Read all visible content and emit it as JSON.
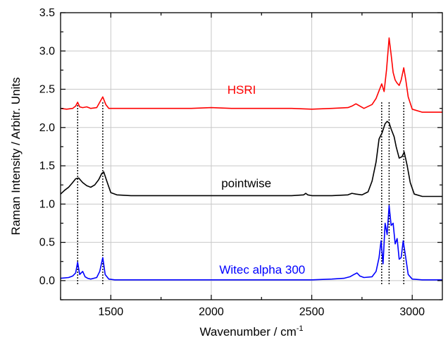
{
  "chart_data": {
    "type": "line",
    "title": "",
    "xlabel": "Wavenumber / cm",
    "xlabel_superscript": "-1",
    "ylabel": "Raman Intensity / Arbitr. Units",
    "xlim": [
      1250,
      3150
    ],
    "ylim": [
      -0.25,
      3.5
    ],
    "x_ticks": [
      1500,
      2000,
      2500,
      3000
    ],
    "x_tick_labels": [
      "1500",
      "2000",
      "2500",
      "3000"
    ],
    "y_ticks": [
      0.0,
      0.5,
      1.0,
      1.5,
      2.0,
      2.5,
      3.0,
      3.5
    ],
    "y_tick_labels": [
      "0.0",
      "0.5",
      "1.0",
      "1.5",
      "2.0",
      "2.5",
      "3.0",
      "3.5"
    ],
    "grid": true,
    "reference_lines_x": [
      1335,
      1460,
      2848,
      2885,
      2958
    ],
    "series": [
      {
        "name": "HSRI",
        "color": "#ff0000",
        "baseline": 2.25,
        "x": [
          1250,
          1280,
          1310,
          1325,
          1335,
          1345,
          1360,
          1380,
          1400,
          1430,
          1445,
          1460,
          1475,
          1490,
          1520,
          1600,
          1700,
          1800,
          1900,
          2000,
          2100,
          2200,
          2300,
          2400,
          2500,
          2600,
          2680,
          2700,
          2720,
          2740,
          2760,
          2800,
          2820,
          2835,
          2848,
          2860,
          2872,
          2885,
          2895,
          2905,
          2915,
          2925,
          2935,
          2945,
          2958,
          2968,
          2980,
          3000,
          3050,
          3100,
          3150
        ],
        "y": [
          2.25,
          2.24,
          2.25,
          2.28,
          2.33,
          2.27,
          2.26,
          2.27,
          2.25,
          2.26,
          2.33,
          2.4,
          2.3,
          2.25,
          2.25,
          2.25,
          2.25,
          2.25,
          2.25,
          2.26,
          2.25,
          2.25,
          2.25,
          2.25,
          2.24,
          2.25,
          2.26,
          2.28,
          2.31,
          2.28,
          2.25,
          2.3,
          2.38,
          2.48,
          2.57,
          2.47,
          2.75,
          3.17,
          2.95,
          2.72,
          2.62,
          2.58,
          2.55,
          2.62,
          2.78,
          2.62,
          2.4,
          2.24,
          2.2,
          2.2,
          2.2
        ]
      },
      {
        "name": "pointwise",
        "color": "#000000",
        "baseline": 1.1,
        "x": [
          1250,
          1270,
          1290,
          1310,
          1325,
          1340,
          1360,
          1380,
          1400,
          1420,
          1440,
          1455,
          1465,
          1480,
          1500,
          1530,
          1600,
          1700,
          1800,
          1900,
          2000,
          2100,
          2200,
          2300,
          2400,
          2460,
          2470,
          2480,
          2500,
          2600,
          2680,
          2700,
          2720,
          2750,
          2780,
          2800,
          2820,
          2835,
          2850,
          2865,
          2875,
          2885,
          2895,
          2910,
          2920,
          2935,
          2950,
          2960,
          2975,
          2990,
          3010,
          3050,
          3100,
          3150
        ],
        "y": [
          1.13,
          1.18,
          1.22,
          1.28,
          1.33,
          1.34,
          1.28,
          1.24,
          1.22,
          1.25,
          1.32,
          1.4,
          1.42,
          1.3,
          1.15,
          1.12,
          1.11,
          1.11,
          1.11,
          1.11,
          1.11,
          1.11,
          1.11,
          1.11,
          1.11,
          1.12,
          1.14,
          1.12,
          1.11,
          1.11,
          1.12,
          1.14,
          1.13,
          1.12,
          1.16,
          1.3,
          1.55,
          1.85,
          1.93,
          2.05,
          2.08,
          2.06,
          1.98,
          1.88,
          1.75,
          1.6,
          1.62,
          1.68,
          1.5,
          1.28,
          1.13,
          1.1,
          1.1,
          1.1
        ]
      },
      {
        "name": "Witec alpha 300",
        "color": "#0000ff",
        "baseline": 0.0,
        "x": [
          1250,
          1290,
          1310,
          1325,
          1335,
          1345,
          1360,
          1372,
          1385,
          1400,
          1430,
          1445,
          1460,
          1472,
          1490,
          1520,
          1600,
          1700,
          1800,
          1900,
          2000,
          2100,
          2200,
          2300,
          2400,
          2500,
          2600,
          2660,
          2690,
          2710,
          2725,
          2740,
          2760,
          2800,
          2820,
          2835,
          2845,
          2855,
          2865,
          2875,
          2885,
          2895,
          2905,
          2915,
          2925,
          2935,
          2945,
          2955,
          2965,
          2980,
          3000,
          3050,
          3100,
          3150
        ],
        "y": [
          0.03,
          0.04,
          0.06,
          0.1,
          0.24,
          0.08,
          0.12,
          0.05,
          0.03,
          0.02,
          0.04,
          0.12,
          0.3,
          0.08,
          0.02,
          0.01,
          0.01,
          0.01,
          0.01,
          0.01,
          0.01,
          0.01,
          0.01,
          0.01,
          0.01,
          0.01,
          0.02,
          0.03,
          0.05,
          0.08,
          0.1,
          0.06,
          0.04,
          0.05,
          0.12,
          0.3,
          0.52,
          0.22,
          0.75,
          0.6,
          0.98,
          0.72,
          0.75,
          0.48,
          0.55,
          0.28,
          0.3,
          0.52,
          0.35,
          0.08,
          0.02,
          0.01,
          0.01,
          0.01
        ]
      }
    ],
    "annotations": [
      {
        "text": "HSRI",
        "x": 2080,
        "y": 2.44,
        "color": "#ff0000"
      },
      {
        "text": "pointwise",
        "x": 2050,
        "y": 1.22,
        "color": "#000000"
      },
      {
        "text": "Witec alpha 300",
        "x": 2040,
        "y": 0.09,
        "color": "#0000ff"
      }
    ]
  }
}
